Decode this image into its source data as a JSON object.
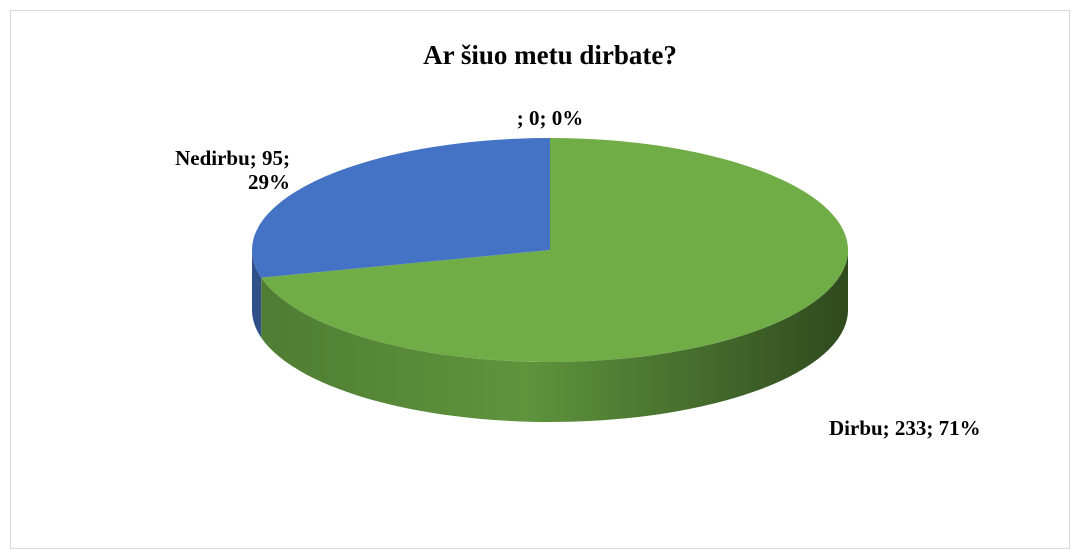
{
  "chart_data": {
    "type": "pie3d",
    "title": "Ar šiuo metu dirbate?",
    "values": [
      233,
      95,
      0
    ],
    "value_labels": [
      "Dirbu; 233; 71%",
      "Nedirbu; 95; 29%",
      "; 0; 0%"
    ],
    "colors": [
      "#70ad47",
      "#4472c4",
      "#a5a5a5"
    ],
    "start_angle": 0,
    "direction": "clockwise"
  }
}
